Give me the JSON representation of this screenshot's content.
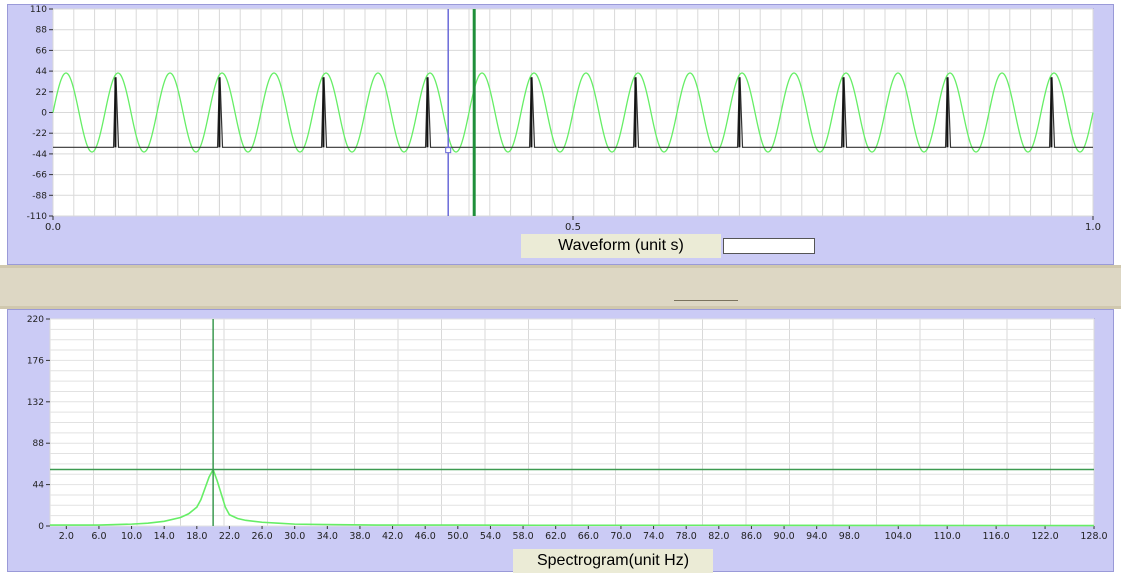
{
  "chart_data": [
    {
      "type": "line",
      "xlabel": "Waveform (unit s)",
      "xlim": [
        0,
        1
      ],
      "ylim": [
        -110,
        110
      ],
      "y_ticks": [
        "110",
        "88",
        "66",
        "44",
        "22",
        "0",
        "-22",
        "-44",
        "-66",
        "-88",
        "-110"
      ],
      "x_ticks": [
        "0.0",
        "0.5",
        "1.0"
      ],
      "grid": true,
      "series": [
        {
          "color": "#66ee66",
          "sine_amplitude": 42,
          "sine_frequency_hz": 20,
          "sine_phase_deg": 0
        },
        {
          "color": "#333333",
          "baseline": -37,
          "pulse_peak": 37,
          "pulse_times": [
            0.06,
            0.16,
            0.26,
            0.36,
            0.46,
            0.56,
            0.66,
            0.76,
            0.86,
            0.96
          ]
        }
      ],
      "cursors": [
        {
          "x": 0.38,
          "color": "#6a6ad8"
        },
        {
          "x": 0.405,
          "color": "#1f8f3a"
        }
      ]
    },
    {
      "type": "line",
      "xlabel": "Spectrogram(unit Hz)",
      "xlim": [
        0,
        128
      ],
      "ylim": [
        0,
        220
      ],
      "y_ticks": [
        "220",
        "176",
        "132",
        "88",
        "44",
        "0"
      ],
      "x_ticks": [
        "2.0",
        "6.0",
        "10.0",
        "14.0",
        "18.0",
        "22.0",
        "26.0",
        "30.0",
        "34.0",
        "38.0",
        "42.0",
        "46.0",
        "50.0",
        "54.0",
        "58.0",
        "62.0",
        "66.0",
        "70.0",
        "74.0",
        "78.0",
        "82.0",
        "86.0",
        "90.0",
        "94.0",
        "98.0",
        "104.0",
        "110.0",
        "116.0",
        "122.0",
        "128.0"
      ],
      "grid": true,
      "series": [
        {
          "color": "#66ee66",
          "peak_x": 20,
          "peak_y": 60,
          "x": [
            0,
            2,
            4,
            6,
            8,
            10,
            12,
            14,
            16,
            17,
            18,
            18.5,
            19,
            19.5,
            20,
            20.5,
            21,
            21.5,
            22,
            23,
            24,
            26,
            28,
            30,
            34,
            40,
            50,
            60,
            80,
            100,
            128
          ],
          "y": [
            1,
            1,
            1,
            1,
            1.5,
            2,
            3,
            5,
            9,
            13,
            20,
            28,
            40,
            52,
            60,
            48,
            34,
            20,
            12,
            8,
            6,
            4,
            3,
            2,
            1.5,
            1,
            1,
            0.8,
            0.8,
            0.6,
            0.5
          ]
        }
      ],
      "cursors": [
        {
          "x": 20,
          "color": "#3c9a50"
        }
      ],
      "hline": {
        "y": 60,
        "color": "#3c9a50"
      }
    }
  ]
}
